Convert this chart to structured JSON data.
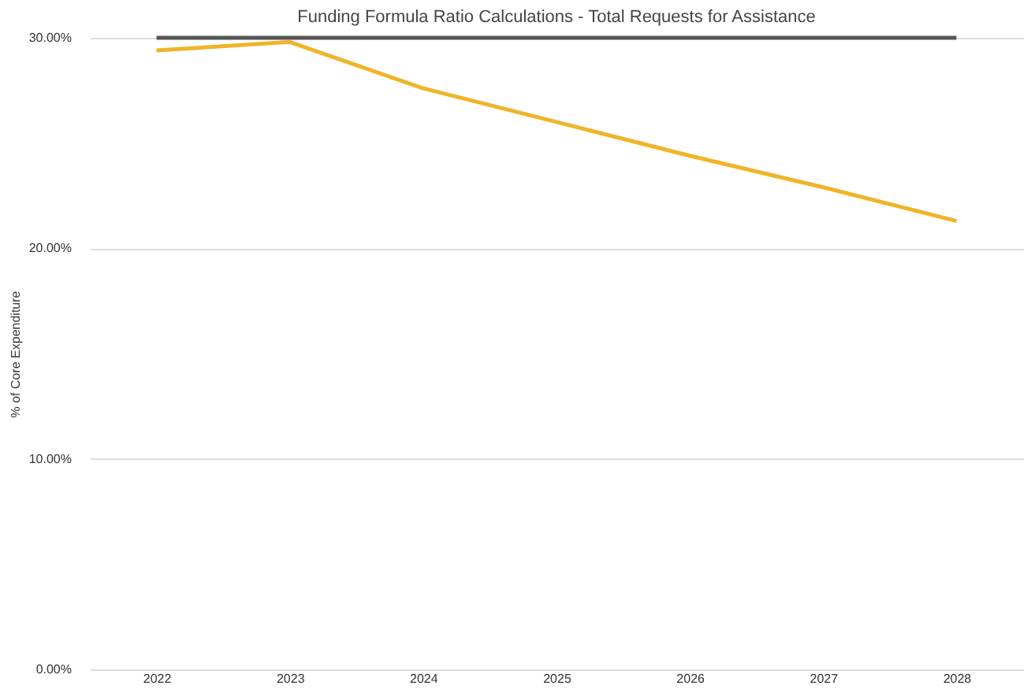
{
  "chart_data": {
    "type": "line",
    "title": "Funding Formula Ratio Calculations - Total Requests for Assistance",
    "ylabel": "% of Core Expenditure",
    "categories": [
      "2022",
      "2023",
      "2024",
      "2025",
      "2026",
      "2027",
      "2028"
    ],
    "series": [
      {
        "color": "#555555",
        "values": [
          30,
          30,
          30,
          30,
          30,
          30,
          30
        ]
      },
      {
        "color": "#f0b429",
        "values": [
          29.4,
          29.8,
          27.6,
          26.0,
          24.4,
          22.9,
          21.3
        ]
      }
    ],
    "ylim": [
      0,
      30
    ],
    "yticks": [
      {
        "value": 0,
        "label": "0.00%"
      },
      {
        "value": 10,
        "label": "10.00%"
      },
      {
        "value": 20,
        "label": "20.00%"
      },
      {
        "value": 30,
        "label": "30.00%"
      }
    ],
    "grid": "y",
    "legend": false,
    "marker": "none",
    "line_style": "solid"
  }
}
